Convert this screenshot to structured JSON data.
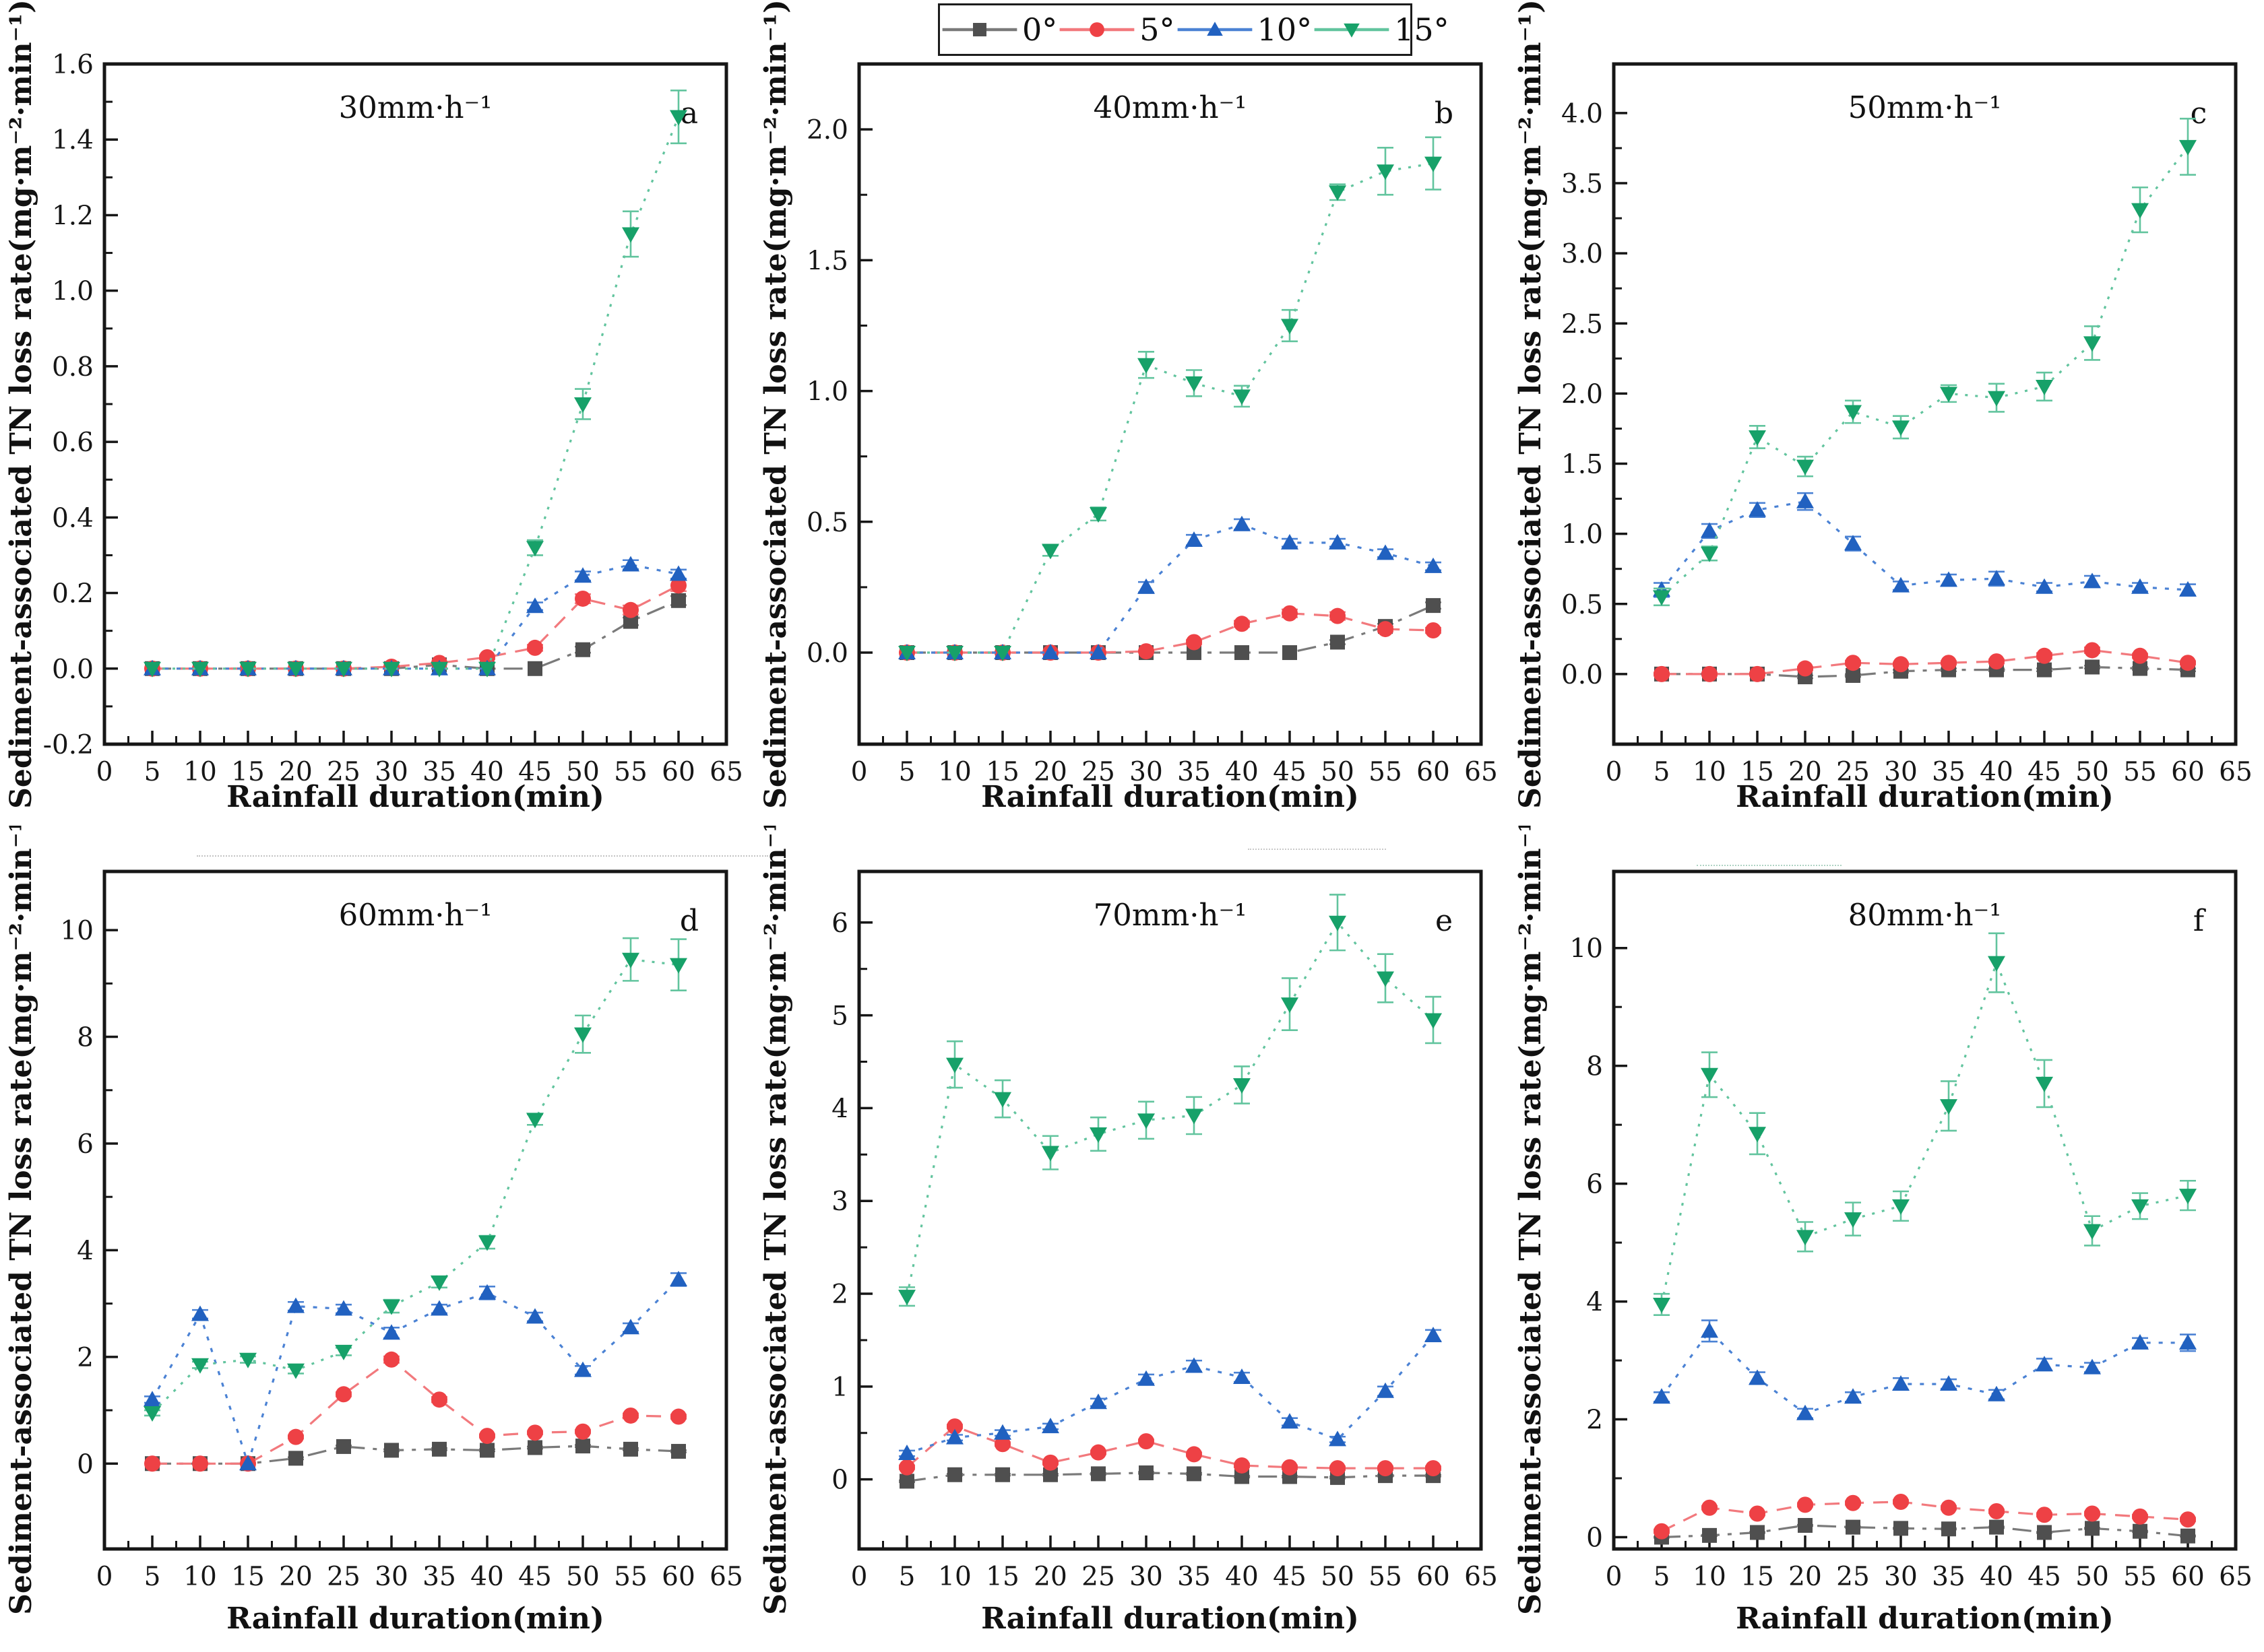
{
  "figure": {
    "background": "#ffffff",
    "xlabel": "Rainfall duration(min)",
    "ylabel": "Sediment-associated TN loss rate(mg·m⁻²·min⁻¹)",
    "legend": {
      "entries": [
        {
          "label": "0°",
          "marker": "square",
          "color": "#4f4f4f",
          "line_color": "#7a7a7a",
          "dash": "28 12 6 12"
        },
        {
          "label": "5°",
          "marker": "circle",
          "color": "#ee4145",
          "line_color": "#f2797d",
          "dash": "22 14"
        },
        {
          "label": "10°",
          "marker": "triangle-up",
          "color": "#2161c0",
          "line_color": "#4b82d4",
          "dash": "6 12"
        },
        {
          "label": "15°",
          "marker": "triangle-down",
          "color": "#17a169",
          "line_color": "#62c49e",
          "dash": "4 11"
        }
      ]
    }
  },
  "chart_data": [
    {
      "id": "a",
      "type": "line",
      "title": "30mm·h⁻¹",
      "letter": "a",
      "xlabel": "Rainfall duration(min)",
      "ylabel": "Sediment-associated TN loss rate(mg·m⁻²·min⁻¹)",
      "x": [
        5,
        10,
        15,
        20,
        25,
        30,
        35,
        40,
        45,
        50,
        55,
        60
      ],
      "xlim": [
        0,
        65
      ],
      "xtick_step": 5,
      "ylim": [
        -0.2,
        1.6
      ],
      "yticks": [
        -0.2,
        0.0,
        0.2,
        0.4,
        0.6,
        0.8,
        1.0,
        1.2,
        1.4,
        1.6
      ],
      "ytick_decimals": 1,
      "series": [
        {
          "name": "0°",
          "values": [
            0,
            0,
            0,
            0,
            0,
            0,
            0.01,
            0,
            0,
            0.05,
            0.125,
            0.18
          ],
          "err": [
            0,
            0,
            0,
            0,
            0,
            0,
            0,
            0,
            0,
            0.008,
            0.01,
            0.012
          ]
        },
        {
          "name": "5°",
          "values": [
            0,
            0,
            0,
            0,
            0,
            0.005,
            0.015,
            0.03,
            0.055,
            0.185,
            0.155,
            0.22
          ],
          "err": [
            0,
            0,
            0,
            0,
            0,
            0,
            0,
            0.005,
            0.008,
            0.012,
            0.012,
            0.015
          ]
        },
        {
          "name": "10°",
          "values": [
            0,
            0,
            0,
            0,
            0,
            0,
            0,
            0,
            0.165,
            0.245,
            0.275,
            0.25
          ],
          "err": [
            0,
            0,
            0,
            0,
            0,
            0,
            0,
            0,
            0.01,
            0.012,
            0.012,
            0.012
          ]
        },
        {
          "name": "15°",
          "values": [
            0,
            0,
            0,
            0,
            0,
            0,
            0,
            0,
            0.32,
            0.7,
            1.15,
            1.46
          ],
          "err": [
            0,
            0,
            0,
            0,
            0,
            0,
            0,
            0,
            0.02,
            0.04,
            0.06,
            0.07
          ]
        }
      ]
    },
    {
      "id": "b",
      "type": "line",
      "title": "40mm·h⁻¹",
      "letter": "b",
      "xlabel": "Rainfall duration(min)",
      "ylabel": "Sediment-associated TN loss rate(mg·m⁻²·min⁻¹)",
      "x": [
        5,
        10,
        15,
        20,
        25,
        30,
        35,
        40,
        45,
        50,
        55,
        60
      ],
      "xlim": [
        0,
        65
      ],
      "xtick_step": 5,
      "ylim": [
        -0.35,
        2.25
      ],
      "yticks": [
        0.0,
        0.5,
        1.0,
        1.5,
        2.0
      ],
      "ytick_decimals": 1,
      "series": [
        {
          "name": "0°",
          "values": [
            0,
            0,
            0,
            0,
            0,
            0,
            0,
            0,
            0,
            0.04,
            0.1,
            0.18
          ],
          "err": [
            0,
            0,
            0,
            0,
            0,
            0,
            0,
            0,
            0,
            0.008,
            0.01,
            0.012
          ]
        },
        {
          "name": "5°",
          "values": [
            0,
            0,
            0,
            0,
            0,
            0.005,
            0.04,
            0.11,
            0.15,
            0.14,
            0.09,
            0.085
          ],
          "err": [
            0,
            0,
            0,
            0,
            0,
            0,
            0.008,
            0.012,
            0.015,
            0.015,
            0.01,
            0.01
          ]
        },
        {
          "name": "10°",
          "values": [
            0,
            0,
            0,
            0,
            0,
            0.25,
            0.43,
            0.49,
            0.42,
            0.42,
            0.38,
            0.33
          ],
          "err": [
            0,
            0,
            0,
            0,
            0,
            0.02,
            0.02,
            0.02,
            0.015,
            0.015,
            0.015,
            0.015
          ]
        },
        {
          "name": "15°",
          "values": [
            0,
            0,
            0,
            0.39,
            0.53,
            1.1,
            1.03,
            0.98,
            1.25,
            1.76,
            1.84,
            1.87
          ],
          "err": [
            0,
            0,
            0,
            0.02,
            0.025,
            0.05,
            0.05,
            0.04,
            0.06,
            0.03,
            0.09,
            0.1
          ]
        }
      ]
    },
    {
      "id": "c",
      "type": "line",
      "title": "50mm·h⁻¹",
      "letter": "c",
      "xlabel": "Rainfall duration(min)",
      "ylabel": "Sediment-associated TN loss rate(mg·m⁻²·min⁻¹)",
      "x": [
        5,
        10,
        15,
        20,
        25,
        30,
        35,
        40,
        45,
        50,
        55,
        60
      ],
      "xlim": [
        0,
        65
      ],
      "xtick_step": 5,
      "ylim": [
        -0.5,
        4.35
      ],
      "yticks": [
        0.0,
        0.5,
        1.0,
        1.5,
        2.0,
        2.5,
        3.0,
        3.5,
        4.0
      ],
      "ytick_decimals": 1,
      "series": [
        {
          "name": "0°",
          "values": [
            0,
            0,
            0,
            -0.02,
            -0.01,
            0.02,
            0.03,
            0.03,
            0.03,
            0.05,
            0.04,
            0.03
          ],
          "err": [
            0.01,
            0.01,
            0.01,
            0.01,
            0.01,
            0.01,
            0.01,
            0.01,
            0.01,
            0.01,
            0.01,
            0.01
          ]
        },
        {
          "name": "5°",
          "values": [
            0,
            0,
            0,
            0.04,
            0.08,
            0.07,
            0.08,
            0.09,
            0.13,
            0.17,
            0.13,
            0.08
          ],
          "err": [
            0.01,
            0.01,
            0.01,
            0.012,
            0.015,
            0.012,
            0.012,
            0.015,
            0.02,
            0.02,
            0.015,
            0.012
          ]
        },
        {
          "name": "10°",
          "values": [
            0.6,
            1.02,
            1.17,
            1.23,
            0.93,
            0.63,
            0.67,
            0.68,
            0.62,
            0.66,
            0.62,
            0.6
          ],
          "err": [
            0.05,
            0.05,
            0.05,
            0.06,
            0.05,
            0.03,
            0.04,
            0.05,
            0.03,
            0.04,
            0.03,
            0.04
          ]
        },
        {
          "name": "15°",
          "values": [
            0.55,
            0.86,
            1.69,
            1.48,
            1.87,
            1.76,
            2.0,
            1.97,
            2.05,
            2.36,
            3.31,
            3.76
          ],
          "err": [
            0.06,
            0.05,
            0.08,
            0.07,
            0.08,
            0.08,
            0.06,
            0.1,
            0.1,
            0.12,
            0.16,
            0.2
          ]
        }
      ]
    },
    {
      "id": "d",
      "type": "line",
      "title": "60mm·h⁻¹",
      "letter": "d",
      "xlabel": "Rainfall duration(min)",
      "ylabel": "Sediment-associated TN loss rate(mg·m⁻²·min⁻¹)",
      "x": [
        5,
        10,
        15,
        20,
        25,
        30,
        35,
        40,
        45,
        50,
        55,
        60
      ],
      "xlim": [
        0,
        65
      ],
      "xtick_step": 5,
      "ylim": [
        -1.6,
        11.1
      ],
      "yticks": [
        0,
        2,
        4,
        6,
        8,
        10
      ],
      "ytick_decimals": 0,
      "series": [
        {
          "name": "0°",
          "values": [
            0,
            0,
            0,
            0.1,
            0.32,
            0.25,
            0.27,
            0.25,
            0.3,
            0.33,
            0.27,
            0.23
          ],
          "err": [
            0,
            0,
            0,
            0.02,
            0.02,
            0.02,
            0.02,
            0.02,
            0.02,
            0.02,
            0.02,
            0.02
          ]
        },
        {
          "name": "5°",
          "values": [
            0,
            0,
            0,
            0.5,
            1.3,
            1.95,
            1.2,
            0.52,
            0.58,
            0.6,
            0.9,
            0.88
          ],
          "err": [
            0,
            0,
            0,
            0.03,
            0.04,
            0.06,
            0.05,
            0.03,
            0.03,
            0.03,
            0.04,
            0.04
          ]
        },
        {
          "name": "10°",
          "values": [
            1.2,
            2.8,
            0,
            2.95,
            2.9,
            2.45,
            2.9,
            3.2,
            2.75,
            1.75,
            2.55,
            3.45
          ],
          "err": [
            0.06,
            0.08,
            0,
            0.08,
            0.08,
            0.1,
            0.08,
            0.12,
            0.08,
            0.08,
            0.08,
            0.12
          ]
        },
        {
          "name": "15°",
          "values": [
            0.95,
            1.85,
            1.95,
            1.75,
            2.1,
            2.95,
            3.4,
            4.15,
            6.45,
            8.05,
            9.45,
            9.35
          ],
          "err": [
            0.05,
            0.06,
            0.06,
            0.06,
            0.07,
            0.12,
            0.1,
            0.12,
            0.1,
            0.35,
            0.4,
            0.48
          ]
        }
      ]
    },
    {
      "id": "e",
      "type": "line",
      "title": "70mm·h⁻¹",
      "letter": "e",
      "xlabel": "Rainfall duration(min)",
      "ylabel": "Sediment-associated TN loss rate(mg·m⁻²·min⁻¹)",
      "x": [
        5,
        10,
        15,
        20,
        25,
        30,
        35,
        40,
        45,
        50,
        55,
        60
      ],
      "xlim": [
        0,
        65
      ],
      "xtick_step": 5,
      "ylim": [
        -0.75,
        6.55
      ],
      "yticks": [
        0,
        1,
        2,
        3,
        4,
        5,
        6
      ],
      "ytick_decimals": 0,
      "series": [
        {
          "name": "0°",
          "values": [
            -0.02,
            0.05,
            0.05,
            0.05,
            0.06,
            0.07,
            0.06,
            0.03,
            0.03,
            0.02,
            0.04,
            0.04
          ],
          "err": [
            0.01,
            0.01,
            0.01,
            0.01,
            0.01,
            0.01,
            0.01,
            0.01,
            0.01,
            0.01,
            0.01,
            0.01
          ]
        },
        {
          "name": "5°",
          "values": [
            0.13,
            0.57,
            0.38,
            0.18,
            0.29,
            0.41,
            0.27,
            0.15,
            0.13,
            0.12,
            0.12,
            0.12
          ],
          "err": [
            0.02,
            0.02,
            0.02,
            0.02,
            0.02,
            0.02,
            0.02,
            0.02,
            0.02,
            0.02,
            0.02,
            0.02
          ]
        },
        {
          "name": "10°",
          "values": [
            0.28,
            0.45,
            0.5,
            0.57,
            0.83,
            1.08,
            1.22,
            1.1,
            0.62,
            0.43,
            0.95,
            1.55
          ],
          "err": [
            0.03,
            0.03,
            0.03,
            0.03,
            0.04,
            0.05,
            0.06,
            0.05,
            0.04,
            0.03,
            0.05,
            0.06
          ]
        },
        {
          "name": "15°",
          "values": [
            1.97,
            4.47,
            4.1,
            3.52,
            3.72,
            3.87,
            3.92,
            4.25,
            5.12,
            6.0,
            5.4,
            4.95
          ],
          "err": [
            0.1,
            0.25,
            0.2,
            0.18,
            0.18,
            0.2,
            0.2,
            0.2,
            0.28,
            0.3,
            0.26,
            0.25
          ]
        }
      ]
    },
    {
      "id": "f",
      "type": "line",
      "title": "80mm·h⁻¹",
      "letter": "f",
      "xlabel": "Rainfall duration(min)",
      "ylabel": "Sediment-associated TN loss rate(mg·m⁻²·min⁻¹)",
      "x": [
        5,
        10,
        15,
        20,
        25,
        30,
        35,
        40,
        45,
        50,
        55,
        60
      ],
      "xlim": [
        0,
        65
      ],
      "xtick_step": 5,
      "ylim": [
        -0.2,
        11.3
      ],
      "yticks": [
        0,
        2,
        4,
        6,
        8,
        10
      ],
      "ytick_decimals": 0,
      "series": [
        {
          "name": "0°",
          "values": [
            0.0,
            0.03,
            0.08,
            0.2,
            0.17,
            0.15,
            0.14,
            0.17,
            0.08,
            0.15,
            0.1,
            0.02
          ],
          "err": [
            0.01,
            0.01,
            0.01,
            0.01,
            0.01,
            0.01,
            0.01,
            0.01,
            0.01,
            0.01,
            0.01,
            0.01
          ]
        },
        {
          "name": "5°",
          "values": [
            0.1,
            0.5,
            0.4,
            0.55,
            0.58,
            0.6,
            0.5,
            0.44,
            0.38,
            0.4,
            0.35,
            0.3
          ],
          "err": [
            0.03,
            0.03,
            0.03,
            0.03,
            0.03,
            0.03,
            0.03,
            0.03,
            0.03,
            0.03,
            0.03,
            0.03
          ]
        },
        {
          "name": "10°",
          "values": [
            2.38,
            3.5,
            2.7,
            2.1,
            2.38,
            2.6,
            2.6,
            2.42,
            2.93,
            2.88,
            3.3,
            3.3
          ],
          "err": [
            0.08,
            0.18,
            0.1,
            0.08,
            0.08,
            0.1,
            0.08,
            0.08,
            0.1,
            0.08,
            0.08,
            0.14
          ]
        },
        {
          "name": "15°",
          "values": [
            3.95,
            7.85,
            6.85,
            5.1,
            5.4,
            5.62,
            7.32,
            9.75,
            7.7,
            5.2,
            5.62,
            5.8
          ],
          "err": [
            0.18,
            0.38,
            0.35,
            0.25,
            0.28,
            0.25,
            0.42,
            0.5,
            0.4,
            0.25,
            0.22,
            0.25
          ]
        }
      ]
    }
  ]
}
